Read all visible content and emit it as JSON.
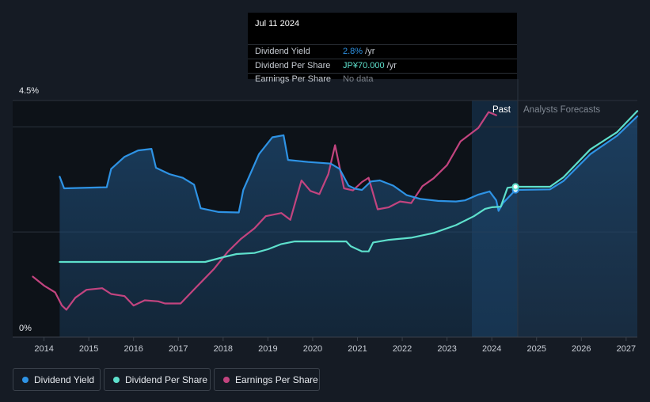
{
  "tooltip": {
    "date": "Jul 11 2024",
    "rows": [
      {
        "name": "Dividend Yield",
        "value": "2.8%",
        "unit": " /yr",
        "color": "#2e93e5"
      },
      {
        "name": "Dividend Per Share",
        "value": "JP¥70.000",
        "unit": " /yr",
        "color": "#5ee0cc"
      },
      {
        "name": "Earnings Per Share",
        "value": "No data",
        "unit": "",
        "color": "#7c828a"
      }
    ]
  },
  "regions": {
    "past": "Past",
    "forecast": "Analysts Forecasts"
  },
  "legend": [
    {
      "label": "Dividend Yield",
      "color": "#2e93e5"
    },
    {
      "label": "Dividend Per Share",
      "color": "#5ee0cc"
    },
    {
      "label": "Earnings Per Share",
      "color": "#c2447f"
    }
  ],
  "chart_data": {
    "type": "line",
    "ylabels": {
      "top": "4.5%",
      "bottom": "0%"
    },
    "ylim": [
      0,
      4.5
    ],
    "xlim": [
      2013.3,
      2027.25
    ],
    "x_ticks": [
      2014,
      2015,
      2016,
      2017,
      2018,
      2019,
      2020,
      2021,
      2022,
      2023,
      2024,
      2025,
      2026,
      2027
    ],
    "past_end": 2024.53,
    "grid": true,
    "legend_position": "bottom-left",
    "series": [
      {
        "name": "Dividend Yield",
        "color": "#2e93e5",
        "area": true,
        "points": [
          [
            2014.35,
            3.05
          ],
          [
            2014.45,
            2.83
          ],
          [
            2015.4,
            2.85
          ],
          [
            2015.5,
            3.2
          ],
          [
            2015.8,
            3.43
          ],
          [
            2016.1,
            3.55
          ],
          [
            2016.4,
            3.58
          ],
          [
            2016.5,
            3.22
          ],
          [
            2016.8,
            3.1
          ],
          [
            2017.1,
            3.03
          ],
          [
            2017.35,
            2.9
          ],
          [
            2017.5,
            2.45
          ],
          [
            2017.9,
            2.38
          ],
          [
            2018.35,
            2.37
          ],
          [
            2018.45,
            2.8
          ],
          [
            2018.8,
            3.48
          ],
          [
            2019.1,
            3.8
          ],
          [
            2019.35,
            3.84
          ],
          [
            2019.45,
            3.37
          ],
          [
            2019.9,
            3.33
          ],
          [
            2020.4,
            3.3
          ],
          [
            2020.6,
            3.2
          ],
          [
            2020.8,
            2.88
          ],
          [
            2020.95,
            2.82
          ],
          [
            2021.1,
            2.8
          ],
          [
            2021.3,
            2.96
          ],
          [
            2021.5,
            2.98
          ],
          [
            2021.8,
            2.88
          ],
          [
            2022.1,
            2.7
          ],
          [
            2022.4,
            2.63
          ],
          [
            2022.8,
            2.59
          ],
          [
            2023.2,
            2.58
          ],
          [
            2023.4,
            2.6
          ],
          [
            2023.7,
            2.71
          ],
          [
            2023.95,
            2.77
          ],
          [
            2024.1,
            2.6
          ],
          [
            2024.15,
            2.4
          ],
          [
            2024.25,
            2.55
          ],
          [
            2024.53,
            2.8
          ],
          [
            2025.3,
            2.81
          ],
          [
            2025.6,
            2.97
          ],
          [
            2026.2,
            3.48
          ],
          [
            2026.8,
            3.83
          ],
          [
            2027.25,
            4.2
          ]
        ]
      },
      {
        "name": "Dividend Per Share",
        "color": "#5ee0cc",
        "area": false,
        "points": [
          [
            2014.35,
            1.43
          ],
          [
            2017.6,
            1.43
          ],
          [
            2018.0,
            1.52
          ],
          [
            2018.3,
            1.58
          ],
          [
            2018.7,
            1.6
          ],
          [
            2019.0,
            1.67
          ],
          [
            2019.3,
            1.77
          ],
          [
            2019.6,
            1.82
          ],
          [
            2020.5,
            1.82
          ],
          [
            2020.75,
            1.82
          ],
          [
            2020.85,
            1.73
          ],
          [
            2021.1,
            1.63
          ],
          [
            2021.25,
            1.63
          ],
          [
            2021.35,
            1.8
          ],
          [
            2021.7,
            1.85
          ],
          [
            2022.2,
            1.89
          ],
          [
            2022.7,
            1.98
          ],
          [
            2023.2,
            2.13
          ],
          [
            2023.6,
            2.3
          ],
          [
            2023.85,
            2.44
          ],
          [
            2024.0,
            2.47
          ],
          [
            2024.2,
            2.48
          ],
          [
            2024.35,
            2.84
          ],
          [
            2024.53,
            2.86
          ],
          [
            2025.3,
            2.86
          ],
          [
            2025.6,
            3.04
          ],
          [
            2026.2,
            3.57
          ],
          [
            2026.8,
            3.9
          ],
          [
            2027.25,
            4.3
          ]
        ]
      },
      {
        "name": "Earnings Per Share",
        "color": "#c2447f",
        "area": false,
        "points": [
          [
            2013.75,
            1.15
          ],
          [
            2014.0,
            0.98
          ],
          [
            2014.25,
            0.85
          ],
          [
            2014.4,
            0.6
          ],
          [
            2014.5,
            0.52
          ],
          [
            2014.7,
            0.75
          ],
          [
            2014.95,
            0.9
          ],
          [
            2015.3,
            0.93
          ],
          [
            2015.5,
            0.82
          ],
          [
            2015.8,
            0.78
          ],
          [
            2016.0,
            0.6
          ],
          [
            2016.25,
            0.7
          ],
          [
            2016.55,
            0.68
          ],
          [
            2016.7,
            0.64
          ],
          [
            2017.05,
            0.64
          ],
          [
            2017.4,
            0.95
          ],
          [
            2017.8,
            1.3
          ],
          [
            2018.1,
            1.62
          ],
          [
            2018.4,
            1.87
          ],
          [
            2018.7,
            2.07
          ],
          [
            2018.95,
            2.3
          ],
          [
            2019.3,
            2.36
          ],
          [
            2019.5,
            2.23
          ],
          [
            2019.75,
            2.98
          ],
          [
            2019.95,
            2.78
          ],
          [
            2020.15,
            2.72
          ],
          [
            2020.35,
            3.1
          ],
          [
            2020.5,
            3.65
          ],
          [
            2020.7,
            2.83
          ],
          [
            2020.9,
            2.79
          ],
          [
            2021.1,
            2.95
          ],
          [
            2021.25,
            3.03
          ],
          [
            2021.45,
            2.43
          ],
          [
            2021.7,
            2.47
          ],
          [
            2021.95,
            2.58
          ],
          [
            2022.2,
            2.55
          ],
          [
            2022.45,
            2.87
          ],
          [
            2022.7,
            3.02
          ],
          [
            2023.0,
            3.27
          ],
          [
            2023.3,
            3.72
          ],
          [
            2023.7,
            3.98
          ],
          [
            2023.93,
            4.28
          ],
          [
            2024.1,
            4.22
          ]
        ]
      }
    ]
  }
}
